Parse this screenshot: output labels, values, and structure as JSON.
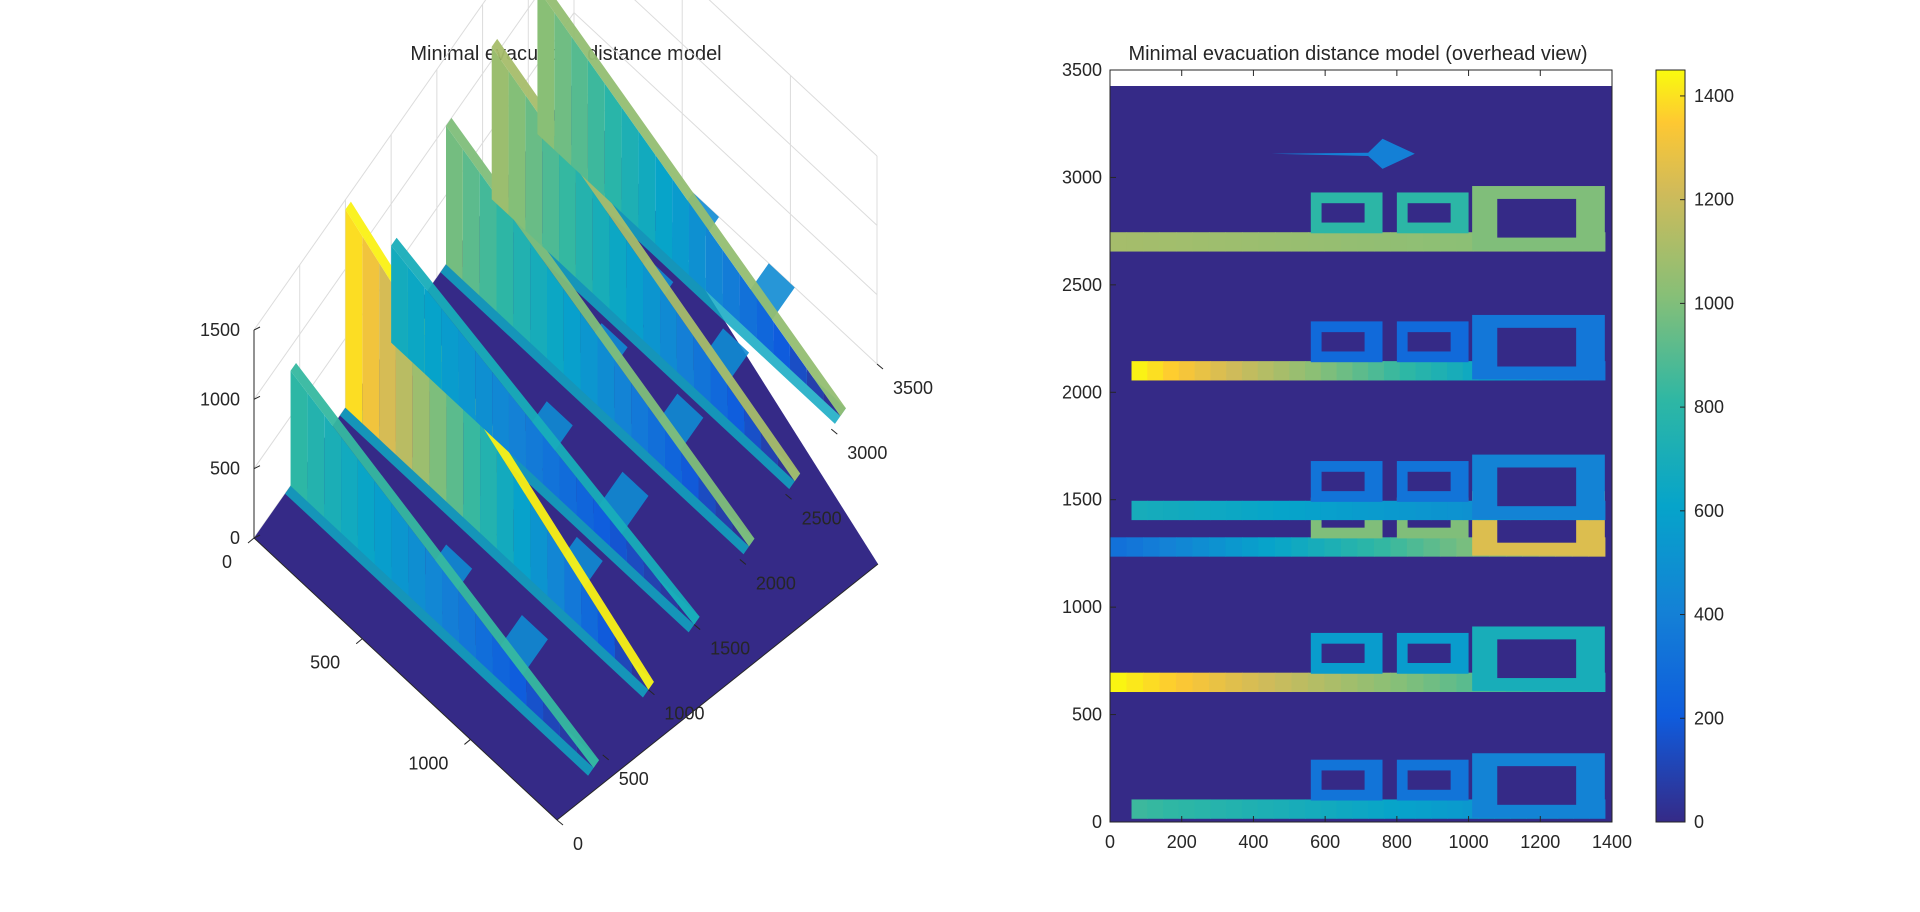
{
  "chart_data": [
    {
      "type": "surface3d",
      "title": "Minimal evacuation distance model",
      "xlabel": "",
      "ylabel": "",
      "zlabel": "",
      "xlim": [
        0,
        1400
      ],
      "ylim": [
        0,
        3500
      ],
      "zlim": [
        0,
        1500
      ],
      "x_ticks": [
        "0",
        "500",
        "1000"
      ],
      "y_ticks": [
        "0",
        "500",
        "1000",
        "1500",
        "2000",
        "2500",
        "3000",
        "3500"
      ],
      "z_ticks": [
        "0",
        "500",
        "1000",
        "1500"
      ],
      "colormap": "parula",
      "grid": true,
      "view": "oblique 3-D",
      "corridor_peaks": [
        {
          "y_position": 400,
          "peak_value": 830
        },
        {
          "y_position": 1000,
          "peak_value": 1430
        },
        {
          "y_position": 1500,
          "peak_value": 700
        },
        {
          "y_position": 2100,
          "peak_value": 1000
        },
        {
          "y_position": 2600,
          "peak_value": 1100
        },
        {
          "y_position": 3100,
          "peak_value": 1050
        }
      ]
    },
    {
      "type": "heatmap",
      "title": "Minimal evacuation distance model (overhead view)",
      "xlim": [
        0,
        1400
      ],
      "ylim": [
        0,
        3500
      ],
      "x_ticks": [
        "0",
        "200",
        "400",
        "600",
        "800",
        "1000",
        "1200",
        "1400"
      ],
      "y_ticks": [
        "0",
        "500",
        "1000",
        "1500",
        "2000",
        "2500",
        "3000",
        "3500"
      ],
      "colormap": "parula",
      "color_limits": [
        0,
        1450
      ],
      "colorbar_ticks": [
        "0",
        "200",
        "400",
        "600",
        "800",
        "1000",
        "1200",
        "1400"
      ],
      "corridors": [
        {
          "y_center": 60,
          "x_range": [
            60,
            1380
          ],
          "start_value": 850,
          "end_value": 420
        },
        {
          "y_center": 650,
          "x_range": [
            0,
            1380
          ],
          "start_value": 1450,
          "end_value": 700
        },
        {
          "y_center": 1280,
          "x_range": [
            0,
            1380
          ],
          "start_value": 300,
          "end_value": 1250
        },
        {
          "y_center": 1450,
          "x_range": [
            60,
            1380
          ],
          "start_value": 700,
          "end_value": 420
        },
        {
          "y_center": 2100,
          "x_range": [
            60,
            1380
          ],
          "start_value": 1450,
          "end_value": 350
        },
        {
          "y_center": 2700,
          "x_range": [
            0,
            1380
          ],
          "start_value": 1100,
          "end_value": 1000
        }
      ]
    }
  ]
}
